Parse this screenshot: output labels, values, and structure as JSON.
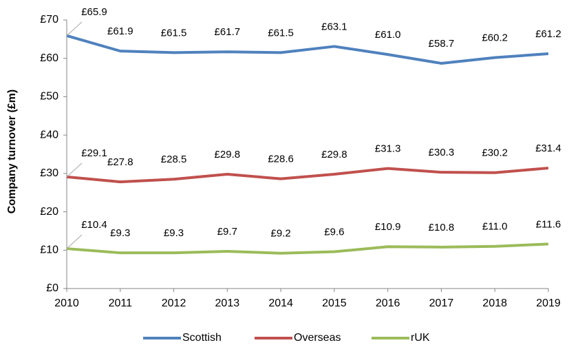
{
  "chart_data": {
    "type": "line",
    "y_label": "Company turnover (£m)",
    "categories": [
      "2010",
      "2011",
      "2012",
      "2013",
      "2014",
      "2015",
      "2016",
      "2017",
      "2018",
      "2019"
    ],
    "series": [
      {
        "name": "Scottish",
        "color": "#4f81bd",
        "values": [
          65.9,
          61.9,
          61.5,
          61.7,
          61.5,
          63.1,
          61.0,
          58.7,
          60.2,
          61.2
        ],
        "value_labels": [
          "£65.9",
          "£61.9",
          "£61.5",
          "£61.7",
          "£61.5",
          "£63.1",
          "£61.0",
          "£58.7",
          "£60.2",
          "£61.2"
        ]
      },
      {
        "name": "Overseas",
        "color": "#c0504d",
        "values": [
          29.1,
          27.8,
          28.5,
          29.8,
          28.6,
          29.8,
          31.3,
          30.3,
          30.2,
          31.4
        ],
        "value_labels": [
          "£29.1",
          "£27.8",
          "£28.5",
          "£29.8",
          "£28.6",
          "£29.8",
          "£31.3",
          "£30.3",
          "£30.2",
          "£31.4"
        ]
      },
      {
        "name": "rUK",
        "color": "#9bbb59",
        "values": [
          10.4,
          9.3,
          9.3,
          9.7,
          9.2,
          9.6,
          10.9,
          10.8,
          11.0,
          11.6
        ],
        "value_labels": [
          "£10.4",
          "£9.3",
          "£9.3",
          "£9.7",
          "£9.2",
          "£9.6",
          "£10.9",
          "£10.8",
          "£11.0",
          "£11.6"
        ]
      }
    ],
    "ylim": [
      0,
      70
    ],
    "yticks": [
      {
        "value": 0,
        "label": "£0"
      },
      {
        "value": 10,
        "label": "£10"
      },
      {
        "value": 20,
        "label": "£20"
      },
      {
        "value": 30,
        "label": "£30"
      },
      {
        "value": 40,
        "label": "£40"
      },
      {
        "value": 50,
        "label": "£50"
      },
      {
        "value": 60,
        "label": "£60"
      },
      {
        "value": 70,
        "label": "£70"
      }
    ],
    "legend": "bottom"
  }
}
